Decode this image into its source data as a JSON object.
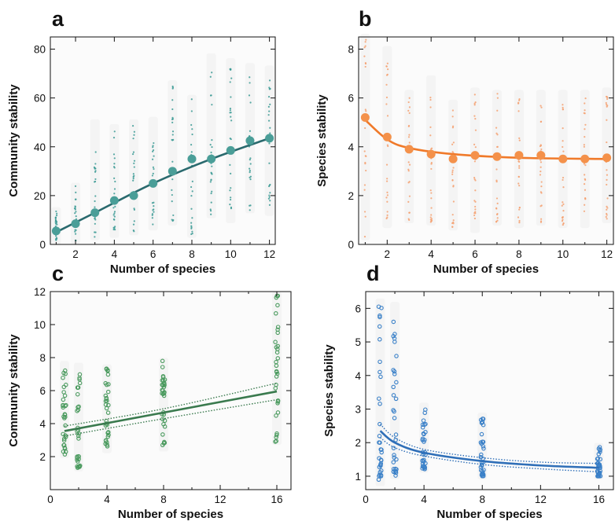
{
  "chart_data": [
    {
      "panel": "a",
      "type": "scatter",
      "xlabel": "Number of species",
      "ylabel": "Community stability",
      "xlim": [
        0.7,
        12.3
      ],
      "ylim": [
        0,
        85
      ],
      "xticks": [
        2,
        4,
        6,
        8,
        10,
        12
      ],
      "yticks": [
        0,
        20,
        40,
        60,
        80
      ],
      "color": "#2a6a6e",
      "point_color": "#3a9a94",
      "fit": "curve",
      "mean_points": [
        {
          "x": 1,
          "y": 5.5
        },
        {
          "x": 2,
          "y": 8.5
        },
        {
          "x": 3,
          "y": 13
        },
        {
          "x": 4,
          "y": 18
        },
        {
          "x": 5,
          "y": 20
        },
        {
          "x": 6,
          "y": 25
        },
        {
          "x": 7,
          "y": 30
        },
        {
          "x": 8,
          "y": 35
        },
        {
          "x": 9,
          "y": 35
        },
        {
          "x": 10,
          "y": 38.5
        },
        {
          "x": 11,
          "y": 42.5
        },
        {
          "x": 12,
          "y": 43.5
        }
      ],
      "fit_points": [
        {
          "x": 1,
          "y": 5
        },
        {
          "x": 3,
          "y": 13
        },
        {
          "x": 6,
          "y": 25
        },
        {
          "x": 9,
          "y": 35
        },
        {
          "x": 12,
          "y": 43.5
        }
      ],
      "spread": [
        {
          "x": 1,
          "min": 1,
          "max": 14
        },
        {
          "x": 2,
          "min": 1.5,
          "max": 24
        },
        {
          "x": 3,
          "min": 3,
          "max": 50
        },
        {
          "x": 4,
          "min": 4,
          "max": 48
        },
        {
          "x": 5,
          "min": 5,
          "max": 50
        },
        {
          "x": 6,
          "min": 7,
          "max": 51
        },
        {
          "x": 7,
          "min": 9,
          "max": 66
        },
        {
          "x": 8,
          "min": 4,
          "max": 60
        },
        {
          "x": 9,
          "min": 12,
          "max": 77
        },
        {
          "x": 10,
          "min": 10,
          "max": 75
        },
        {
          "x": 11,
          "min": 14,
          "max": 73
        },
        {
          "x": 12,
          "min": 13,
          "max": 72
        }
      ]
    },
    {
      "panel": "b",
      "type": "scatter",
      "xlabel": "Number of species",
      "ylabel": "Species stability",
      "xlim": [
        0.7,
        12.3
      ],
      "ylim": [
        0,
        8.5
      ],
      "xticks": [
        2,
        4,
        6,
        8,
        10,
        12
      ],
      "yticks": [
        0,
        2,
        4,
        6,
        8
      ],
      "color": "#f07a2a",
      "point_color": "#f5a070",
      "fit": "curve",
      "mean_points": [
        {
          "x": 1,
          "y": 5.2
        },
        {
          "x": 2,
          "y": 4.4
        },
        {
          "x": 3,
          "y": 3.9
        },
        {
          "x": 4,
          "y": 3.7
        },
        {
          "x": 5,
          "y": 3.5
        },
        {
          "x": 6,
          "y": 3.65
        },
        {
          "x": 7,
          "y": 3.6
        },
        {
          "x": 8,
          "y": 3.65
        },
        {
          "x": 9,
          "y": 3.65
        },
        {
          "x": 10,
          "y": 3.5
        },
        {
          "x": 11,
          "y": 3.5
        },
        {
          "x": 12,
          "y": 3.55
        }
      ],
      "fit_points": [
        {
          "x": 1,
          "y": 5.1
        },
        {
          "x": 2,
          "y": 4.3
        },
        {
          "x": 3,
          "y": 3.95
        },
        {
          "x": 5,
          "y": 3.7
        },
        {
          "x": 8,
          "y": 3.55
        },
        {
          "x": 12,
          "y": 3.5
        }
      ],
      "spread": [
        {
          "x": 1,
          "min": 0.3,
          "max": 8.5
        },
        {
          "x": 2,
          "min": 0.8,
          "max": 8
        },
        {
          "x": 3,
          "min": 1,
          "max": 6.2
        },
        {
          "x": 4,
          "min": 0.9,
          "max": 6.8
        },
        {
          "x": 5,
          "min": 0.7,
          "max": 5.8
        },
        {
          "x": 6,
          "min": 0.6,
          "max": 6.3
        },
        {
          "x": 7,
          "min": 0.9,
          "max": 6.2
        },
        {
          "x": 8,
          "min": 0.8,
          "max": 6.2
        },
        {
          "x": 9,
          "min": 0.9,
          "max": 6.2
        },
        {
          "x": 10,
          "min": 0.8,
          "max": 6.2
        },
        {
          "x": 11,
          "min": 0.8,
          "max": 6.2
        },
        {
          "x": 12,
          "min": 1,
          "max": 6.3
        }
      ]
    },
    {
      "panel": "c",
      "type": "scatter",
      "xlabel": "Number of species",
      "ylabel": "Community stability",
      "xlim": [
        0,
        17
      ],
      "ylim": [
        0,
        12
      ],
      "xticks": [
        0,
        4,
        8,
        12,
        16
      ],
      "yticks": [
        2,
        4,
        6,
        8,
        10,
        12
      ],
      "color": "#3a7a4e",
      "point_color": "#4a9a5e",
      "fit": "line",
      "fit_points": [
        {
          "x": 1,
          "y": 3.55
        },
        {
          "x": 16,
          "y": 5.95
        }
      ],
      "ci_upper": [
        {
          "x": 1,
          "y": 3.85
        },
        {
          "x": 8,
          "y": 4.9
        },
        {
          "x": 16,
          "y": 6.45
        }
      ],
      "ci_lower": [
        {
          "x": 1,
          "y": 3.25
        },
        {
          "x": 8,
          "y": 4.3
        },
        {
          "x": 16,
          "y": 5.45
        }
      ],
      "spread": [
        {
          "x": 1,
          "min": 2.1,
          "max": 7.6
        },
        {
          "x": 2,
          "min": 1.3,
          "max": 7.5
        },
        {
          "x": 4,
          "min": 2.4,
          "max": 7.4
        },
        {
          "x": 8,
          "min": 2.5,
          "max": 7.8
        },
        {
          "x": 16,
          "min": 2.9,
          "max": 11.8
        }
      ]
    },
    {
      "panel": "d",
      "type": "scatter",
      "xlabel": "Number of species",
      "ylabel": "Species stability",
      "xlim": [
        0,
        17
      ],
      "ylim": [
        0.6,
        6.5
      ],
      "xticks": [
        0,
        4,
        8,
        12,
        16
      ],
      "yticks": [
        1,
        2,
        3,
        4,
        5,
        6
      ],
      "color": "#2f6fb8",
      "point_color": "#3a80c8",
      "fit": "curve",
      "fit_points": [
        {
          "x": 1,
          "y": 2.35
        },
        {
          "x": 2,
          "y": 2.0
        },
        {
          "x": 4,
          "y": 1.7
        },
        {
          "x": 8,
          "y": 1.45
        },
        {
          "x": 12,
          "y": 1.32
        },
        {
          "x": 16,
          "y": 1.25
        }
      ],
      "ci_upper": [
        {
          "x": 1,
          "y": 2.55
        },
        {
          "x": 2,
          "y": 2.15
        },
        {
          "x": 4,
          "y": 1.8
        },
        {
          "x": 8,
          "y": 1.55
        },
        {
          "x": 12,
          "y": 1.42
        },
        {
          "x": 16,
          "y": 1.38
        }
      ],
      "ci_lower": [
        {
          "x": 1,
          "y": 2.15
        },
        {
          "x": 2,
          "y": 1.85
        },
        {
          "x": 4,
          "y": 1.6
        },
        {
          "x": 8,
          "y": 1.35
        },
        {
          "x": 12,
          "y": 1.22
        },
        {
          "x": 16,
          "y": 1.13
        }
      ],
      "spread": [
        {
          "x": 1,
          "min": 0.8,
          "max": 6.2
        },
        {
          "x": 2,
          "min": 1.0,
          "max": 6.1
        },
        {
          "x": 4,
          "min": 1.2,
          "max": 3.1
        },
        {
          "x": 8,
          "min": 1.0,
          "max": 2.8
        },
        {
          "x": 16,
          "min": 1.0,
          "max": 1.9
        }
      ]
    }
  ]
}
